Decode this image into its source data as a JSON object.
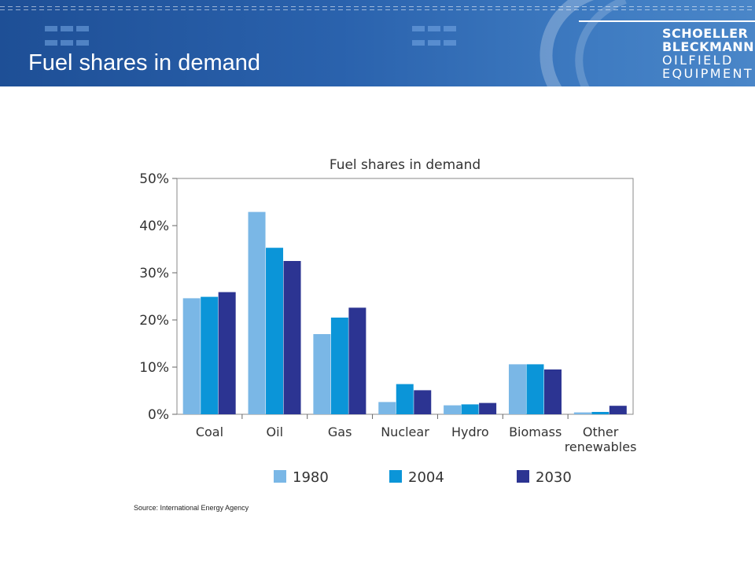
{
  "slide": {
    "title": "Fuel shares in demand",
    "source": "Source: International Energy Agency",
    "logo": {
      "line1": "SCHOELLER",
      "line2": "BLECKMANN",
      "line3": "OILFIELD",
      "line4": "EQUIPMENT"
    },
    "colors": {
      "header_band": "#2a62ad",
      "header_text": "#ffffff"
    }
  },
  "chart_data": {
    "type": "bar",
    "title": "Fuel shares in demand",
    "xlabel": "",
    "ylabel": "",
    "categories": [
      "Coal",
      "Oil",
      "Gas",
      "Nuclear",
      "Hydro",
      "Biomass",
      "Other renewables"
    ],
    "series": [
      {
        "name": "1980",
        "color": "#7ab7e6",
        "values": [
          24.6,
          42.9,
          17.0,
          2.6,
          1.9,
          10.6,
          0.4
        ]
      },
      {
        "name": "2004",
        "color": "#0b95d8",
        "values": [
          24.9,
          35.3,
          20.5,
          6.4,
          2.1,
          10.6,
          0.5
        ]
      },
      {
        "name": "2030",
        "color": "#2c3492",
        "values": [
          25.9,
          32.5,
          22.6,
          5.1,
          2.4,
          9.5,
          1.8
        ]
      }
    ],
    "ylim": [
      0,
      50
    ],
    "yticks": [
      0,
      10,
      20,
      30,
      40,
      50
    ],
    "ytick_labels": [
      "0%",
      "10%",
      "20%",
      "30%",
      "40%",
      "50%"
    ],
    "grid": false,
    "legend_position": "bottom"
  }
}
